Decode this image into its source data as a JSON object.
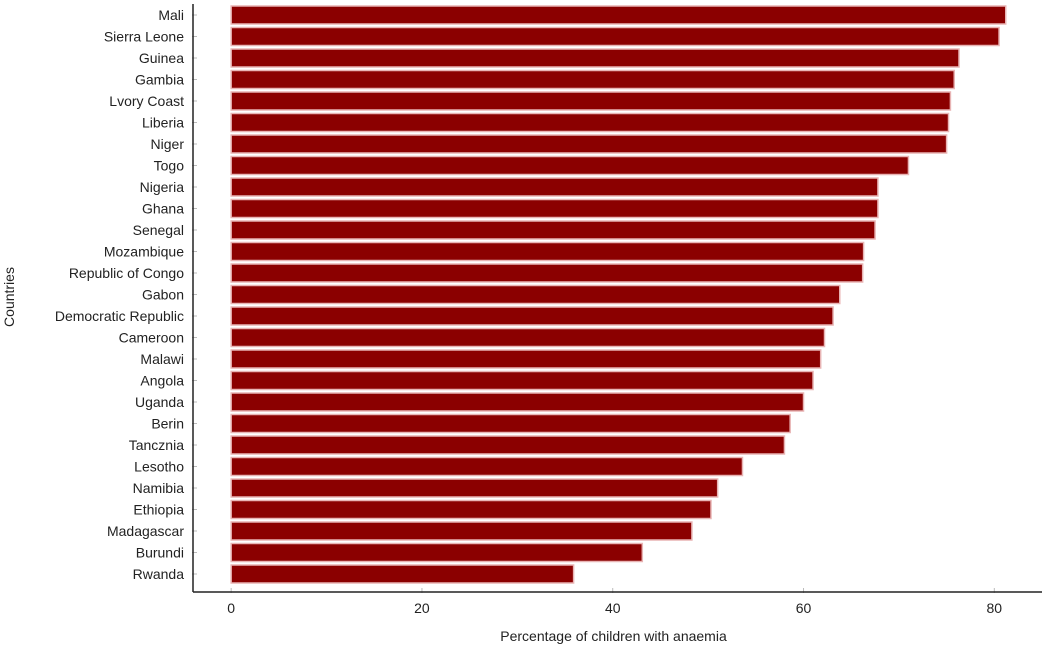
{
  "chart_data": {
    "type": "bar",
    "orientation": "horizontal",
    "title": "",
    "xlabel": "Percentage of children with anaemia",
    "ylabel": "Countries",
    "xlim": [
      -4,
      85
    ],
    "xticks": [
      0,
      20,
      40,
      60,
      80
    ],
    "grid": false,
    "legend": "none",
    "bar_color": "#8b0000",
    "bar_edge_color": "#e8b4b4",
    "categories": [
      "Mali",
      "Sierra Leone",
      "Guinea",
      "Gambia",
      "Lvory Coast",
      "Liberia",
      "Niger",
      "Togo",
      "Nigeria",
      "Ghana",
      "Senegal",
      "Mozambique",
      "Republic of Congo",
      "Gabon",
      "Democratic Republic",
      "Cameroon",
      "Malawi",
      "Angola",
      "Uganda",
      "Berin",
      "Tancznia",
      "Lesotho",
      "Namibia",
      "Ethiopia",
      "Madagascar",
      "Burundi",
      "Rwanda"
    ],
    "values": [
      81.2,
      80.5,
      76.3,
      75.8,
      75.4,
      75.2,
      75.0,
      71.0,
      67.8,
      67.8,
      67.5,
      66.3,
      66.2,
      63.8,
      63.1,
      62.2,
      61.8,
      61.0,
      60.0,
      58.6,
      58.0,
      53.6,
      51.0,
      50.3,
      48.3,
      43.1,
      35.9
    ]
  }
}
